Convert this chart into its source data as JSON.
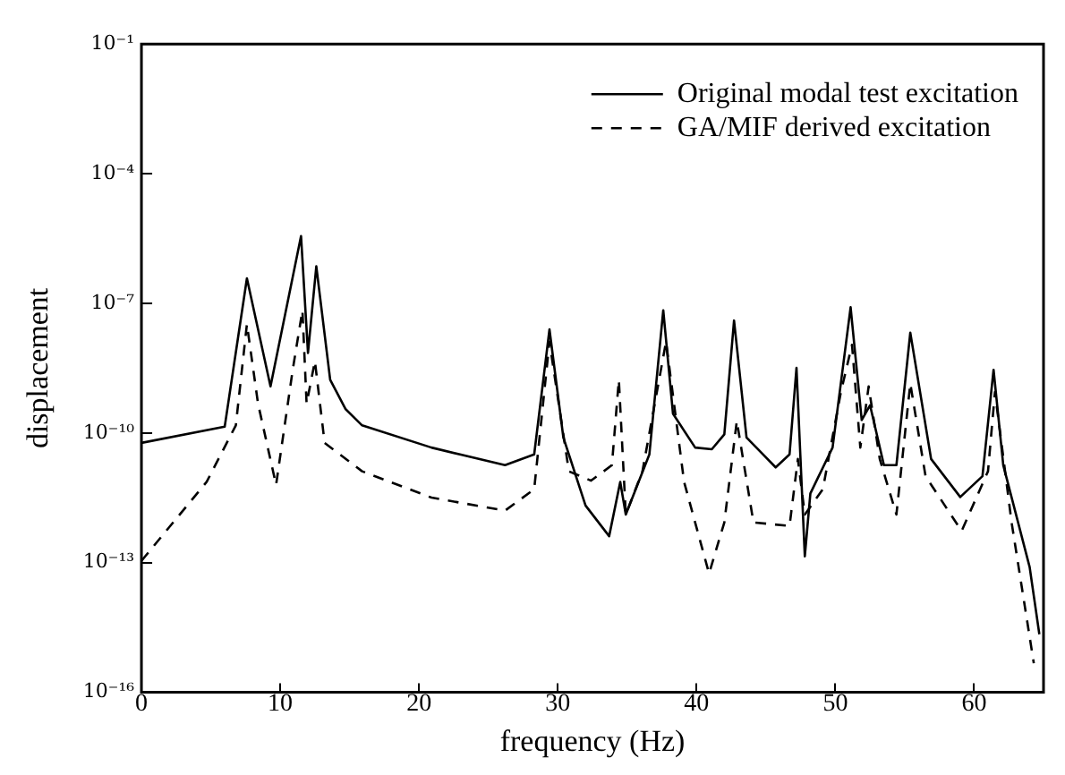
{
  "chart_data": {
    "type": "line",
    "xlabel": "frequency (Hz)",
    "ylabel": "displacement",
    "log": "y",
    "grid": false,
    "legend": "top right",
    "marker": "none",
    "xlim": [
      0,
      65
    ],
    "xticks": [
      0,
      10,
      20,
      30,
      40,
      50,
      60
    ],
    "ylim": [
      1e-16,
      0.1
    ],
    "yticks": [
      {
        "value": 0.1,
        "label": "10⁻¹"
      },
      {
        "value": 0.0001,
        "label": "10⁻⁴"
      },
      {
        "value": 1e-07,
        "label": "10⁻⁷"
      },
      {
        "value": 1e-10,
        "label": "10⁻¹⁰"
      },
      {
        "value": 1e-13,
        "label": "10⁻¹³"
      },
      {
        "value": 1e-16,
        "label": "10⁻¹⁶"
      }
    ],
    "series": [
      {
        "name": "Original modal test excitation",
        "color": "#000000",
        "line_style": "solid",
        "x": [
          0,
          6,
          7.6,
          9.3,
          11.5,
          12.0,
          12.6,
          13.6,
          14.7,
          15.9,
          20.9,
          26.2,
          28.3,
          29.4,
          30.4,
          32.0,
          33.7,
          34.5,
          34.9,
          36.6,
          37.6,
          38.3,
          39.9,
          41.1,
          42.0,
          42.7,
          43.6,
          45.7,
          46.7,
          47.2,
          47.8,
          48.2,
          49.8,
          51.1,
          51.9,
          52.5,
          53.5,
          54.4,
          55.4,
          56.9,
          59.0,
          60.6,
          61.4,
          62.1,
          64.0,
          64.7
        ],
        "values": [
          5.9e-11,
          1.4e-10,
          3.8e-07,
          1.2e-09,
          3.6e-06,
          7.1e-09,
          7.2e-07,
          1.7e-09,
          3.6e-10,
          1.5e-10,
          4.6e-11,
          1.8e-11,
          3.2e-11,
          2.5e-08,
          7.9e-11,
          2.1e-12,
          4.1e-13,
          7.4e-12,
          1.3e-12,
          3.2e-11,
          6.9e-08,
          2.8e-10,
          4.6e-11,
          4.2e-11,
          9.3e-11,
          4e-08,
          7.9e-11,
          1.6e-11,
          3.2e-11,
          3.2e-09,
          1.4e-13,
          4e-12,
          4.6e-11,
          8.1e-08,
          2e-10,
          4.4e-10,
          1.8e-11,
          1.8e-11,
          2.1e-08,
          2.5e-11,
          3.3e-12,
          1e-11,
          2.9e-09,
          1.8e-11,
          7.9e-14,
          2.2e-15
        ]
      },
      {
        "name": "GA/MIF derived excitation",
        "color": "#000000",
        "line_style": "dashed",
        "x": [
          0,
          4.7,
          6.8,
          7.6,
          8.4,
          9.7,
          10.9,
          11.6,
          11.9,
          12.5,
          13.2,
          15.9,
          20.9,
          26.2,
          28.3,
          29.4,
          30.8,
          32.4,
          33.9,
          34.4,
          34.9,
          36.1,
          37.8,
          39.1,
          40.9,
          42.0,
          42.9,
          44.1,
          46.7,
          47.3,
          47.8,
          49.1,
          50.4,
          51.2,
          51.8,
          52.4,
          53.2,
          54.4,
          55.4,
          56.5,
          59.1,
          61.0,
          61.5,
          62.7,
          64.3
        ],
        "values": [
          1.1e-13,
          7.4e-12,
          1.5e-10,
          3.3e-08,
          4.8e-10,
          6.3e-12,
          2.9e-09,
          6.9e-08,
          4.8e-10,
          4.6e-09,
          5.9e-11,
          1.3e-11,
          3.2e-12,
          1.6e-12,
          5e-12,
          1.3e-08,
          1.3e-11,
          7.9e-12,
          1.8e-11,
          1.7e-09,
          1.3e-12,
          1.3e-11,
          1.3e-08,
          7.4e-12,
          5.6e-14,
          8.5e-13,
          1.9e-10,
          8.5e-13,
          7.1e-13,
          2.5e-11,
          1.3e-12,
          5e-12,
          8.9e-10,
          1.1e-08,
          4.6e-11,
          1.2e-09,
          2.5e-11,
          1.3e-12,
          1.4e-09,
          1e-11,
          5.4e-13,
          1.3e-11,
          8.9e-10,
          8.5e-13,
          4.7e-16
        ]
      }
    ]
  }
}
